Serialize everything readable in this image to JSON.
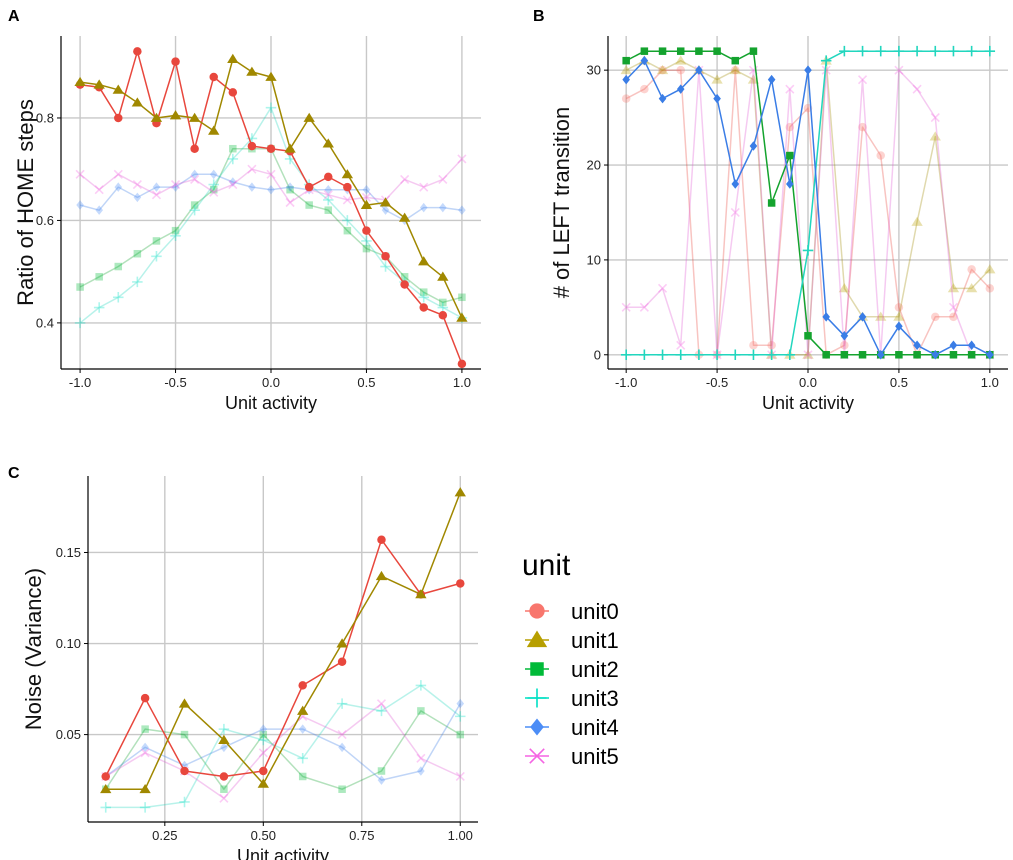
{
  "chart_data": [
    {
      "panel": "A",
      "type": "line",
      "xlabel": "Unit activity",
      "ylabel": "Ratio of HOME steps",
      "xlim": [
        -1.1,
        1.1
      ],
      "ylim": [
        0.31,
        0.96
      ],
      "xticks": [
        -1.0,
        -0.5,
        0.0,
        0.5,
        1.0
      ],
      "xtick_labels": [
        "-1.0",
        "-0.5",
        "0.0",
        "0.5",
        "1.0"
      ],
      "yticks": [
        0.4,
        0.6,
        0.8
      ],
      "ytick_labels": [
        "0.4",
        "0.6",
        "0.8"
      ],
      "x": [
        -1.0,
        -0.9,
        -0.8,
        -0.7,
        -0.6,
        -0.5,
        -0.4,
        -0.3,
        -0.2,
        -0.1,
        0.0,
        0.1,
        0.2,
        0.3,
        0.4,
        0.5,
        0.6,
        0.7,
        0.8,
        0.9,
        1.0
      ],
      "series": [
        {
          "name": "unit0",
          "faded": false,
          "values": [
            0.865,
            0.86,
            0.8,
            0.93,
            0.79,
            0.91,
            0.74,
            0.88,
            0.85,
            0.745,
            0.74,
            0.735,
            0.665,
            0.685,
            0.665,
            0.58,
            0.53,
            0.475,
            0.43,
            0.415,
            0.32
          ]
        },
        {
          "name": "unit1",
          "faded": false,
          "values": [
            0.87,
            0.865,
            0.855,
            0.83,
            0.8,
            0.805,
            0.8,
            0.775,
            0.915,
            0.89,
            0.88,
            0.74,
            0.8,
            0.75,
            0.69,
            0.63,
            0.635,
            0.605,
            0.52,
            0.49,
            0.41
          ]
        },
        {
          "name": "unit2",
          "faded": true,
          "values": [
            0.47,
            0.49,
            0.51,
            0.535,
            0.56,
            0.58,
            0.63,
            0.66,
            0.74,
            0.74,
            0.74,
            0.66,
            0.63,
            0.62,
            0.58,
            0.545,
            0.53,
            0.49,
            0.46,
            0.44,
            0.45
          ]
        },
        {
          "name": "unit3",
          "faded": true,
          "values": [
            0.4,
            0.43,
            0.45,
            0.48,
            0.53,
            0.57,
            0.62,
            0.67,
            0.72,
            0.76,
            0.82,
            0.72,
            0.67,
            0.64,
            0.6,
            0.56,
            0.51,
            0.48,
            0.45,
            0.43,
            0.41
          ]
        },
        {
          "name": "unit4",
          "faded": true,
          "values": [
            0.63,
            0.62,
            0.665,
            0.645,
            0.665,
            0.665,
            0.69,
            0.69,
            0.675,
            0.665,
            0.66,
            0.665,
            0.66,
            0.66,
            0.66,
            0.66,
            0.62,
            0.6,
            0.625,
            0.625,
            0.62
          ]
        },
        {
          "name": "unit5",
          "faded": true,
          "values": [
            0.69,
            0.66,
            0.69,
            0.67,
            0.65,
            0.67,
            0.68,
            0.655,
            0.67,
            0.7,
            0.69,
            0.635,
            0.66,
            0.65,
            0.64,
            0.645,
            0.64,
            0.68,
            0.665,
            0.68,
            0.72
          ]
        }
      ]
    },
    {
      "panel": "B",
      "type": "line",
      "xlabel": "Unit activity",
      "ylabel": "# of LEFT transition",
      "xlim": [
        -1.1,
        1.1
      ],
      "ylim": [
        -1.5,
        33.6
      ],
      "xticks": [
        -1.0,
        -0.5,
        0.0,
        0.5,
        1.0
      ],
      "xtick_labels": [
        "-1.0",
        "-0.5",
        "0.0",
        "0.5",
        "1.0"
      ],
      "yticks": [
        0,
        10,
        20,
        30
      ],
      "ytick_labels": [
        "0",
        "10",
        "20",
        "30"
      ],
      "x": [
        -1.0,
        -0.9,
        -0.8,
        -0.7,
        -0.6,
        -0.5,
        -0.4,
        -0.3,
        -0.2,
        -0.1,
        0.0,
        0.1,
        0.2,
        0.3,
        0.4,
        0.5,
        0.6,
        0.7,
        0.8,
        0.9,
        1.0
      ],
      "series": [
        {
          "name": "unit0",
          "faded": true,
          "values": [
            27,
            28,
            30,
            30,
            0,
            0,
            30,
            1,
            1,
            24,
            26,
            0,
            1,
            24,
            21,
            5,
            0,
            4,
            4,
            9,
            7
          ]
        },
        {
          "name": "unit1",
          "faded": true,
          "values": [
            30,
            31,
            30,
            31,
            30,
            29,
            30,
            29,
            0,
            0,
            0,
            31,
            7,
            4,
            4,
            4,
            14,
            23,
            7,
            7,
            9
          ]
        },
        {
          "name": "unit2",
          "faded": false,
          "values": [
            31,
            32,
            32,
            32,
            32,
            32,
            31,
            32,
            16,
            21,
            2,
            0,
            0,
            0,
            0,
            0,
            0,
            0,
            0,
            0,
            0
          ]
        },
        {
          "name": "unit3",
          "faded": false,
          "values": [
            0,
            0,
            0,
            0,
            0,
            0,
            0,
            0,
            0,
            0,
            11,
            31,
            32,
            32,
            32,
            32,
            32,
            32,
            32,
            32,
            32
          ]
        },
        {
          "name": "unit4",
          "faded": false,
          "values": [
            29,
            31,
            27,
            28,
            30,
            27,
            18,
            22,
            29,
            18,
            30,
            4,
            2,
            4,
            0,
            3,
            1,
            0,
            1,
            1,
            0
          ]
        },
        {
          "name": "unit5",
          "faded": true,
          "values": [
            5,
            5,
            7,
            1,
            30,
            0,
            15,
            30,
            0,
            28,
            0,
            30,
            0,
            29,
            0,
            30,
            28,
            25,
            5,
            0,
            0
          ]
        }
      ]
    },
    {
      "panel": "C",
      "type": "line",
      "xlabel": "Unit activity",
      "ylabel": "Noise (Variance)",
      "xlim": [
        0.055,
        1.045
      ],
      "ylim": [
        0.002,
        0.192
      ],
      "xticks": [
        0.25,
        0.5,
        0.75,
        1.0
      ],
      "xtick_labels": [
        "0.25",
        "0.50",
        "0.75",
        "1.00"
      ],
      "yticks": [
        0.05,
        0.1,
        0.15
      ],
      "ytick_labels": [
        "0.05",
        "0.10",
        "0.15"
      ],
      "x": [
        0.1,
        0.2,
        0.3,
        0.4,
        0.5,
        0.6,
        0.7,
        0.8,
        0.9,
        1.0
      ],
      "series": [
        {
          "name": "unit0",
          "faded": false,
          "values": [
            0.027,
            0.07,
            0.03,
            0.027,
            0.03,
            0.077,
            0.09,
            0.157,
            0.127,
            0.133
          ]
        },
        {
          "name": "unit1",
          "faded": false,
          "values": [
            0.02,
            0.02,
            0.067,
            0.047,
            0.023,
            0.063,
            0.1,
            0.137,
            0.127,
            0.183
          ]
        },
        {
          "name": "unit2",
          "faded": true,
          "values": [
            0.02,
            0.053,
            0.05,
            0.02,
            0.05,
            0.027,
            0.02,
            0.03,
            0.063,
            0.05
          ]
        },
        {
          "name": "unit3",
          "faded": true,
          "values": [
            0.01,
            0.01,
            0.013,
            0.053,
            0.047,
            0.037,
            0.067,
            0.063,
            0.077,
            0.06
          ]
        },
        {
          "name": "unit4",
          "faded": true,
          "values": [
            0.027,
            0.043,
            0.033,
            0.043,
            0.053,
            0.053,
            0.043,
            0.025,
            0.03,
            0.067
          ]
        },
        {
          "name": "unit5",
          "faded": true,
          "values": [
            0.027,
            0.04,
            0.03,
            0.015,
            0.04,
            0.06,
            0.05,
            0.067,
            0.037,
            0.027
          ]
        }
      ]
    }
  ],
  "panel_labels": {
    "a": "A",
    "b": "B",
    "c": "C"
  },
  "legend": {
    "title": "unit",
    "items": [
      {
        "name": "unit0",
        "color": "#F8766D",
        "marker": "circle-icon"
      },
      {
        "name": "unit1",
        "color": "#B79F00",
        "marker": "triangle-icon"
      },
      {
        "name": "unit2",
        "color": "#00BA38",
        "marker": "square-icon"
      },
      {
        "name": "unit3",
        "color": "#00E0C4",
        "marker": "plus-icon"
      },
      {
        "name": "unit4",
        "color": "#4C8DF6",
        "marker": "diamond-icon"
      },
      {
        "name": "unit5",
        "color": "#F564E3",
        "marker": "cross-icon"
      }
    ]
  },
  "colors": {
    "unit0": "#F8766D",
    "unit1": "#B79F00",
    "unit2": "#00BA38",
    "unit3": "#00E0C4",
    "unit4": "#4C8DF6",
    "unit5": "#F564E3",
    "line_unit0": "#E8473D",
    "line_unit1": "#A08800",
    "line_unit2": "#14A32E",
    "line_unit3": "#22D6BE",
    "line_unit4": "#3A7DE6",
    "line_unit5": "#E05BD5",
    "grid": "#C8C8C8",
    "axis": "#000000"
  }
}
